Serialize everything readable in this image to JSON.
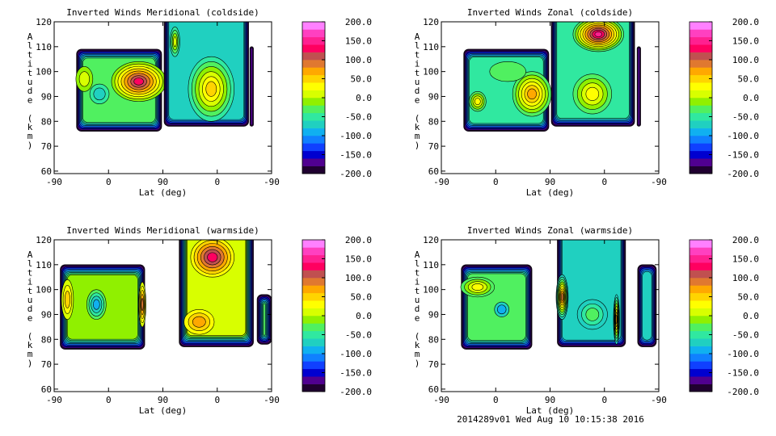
{
  "footer": "2014289v01 Wed Aug 10 10:15:38 2016",
  "chart_data": [
    {
      "type": "heatmap",
      "title": "Inverted Winds Meridional (coldside)",
      "xlabel": "Lat (deg)",
      "ylabel": "Altitude (km)",
      "xticks": [
        "-90",
        "0",
        "90",
        "0",
        "-90"
      ],
      "yticks": [
        60,
        70,
        80,
        90,
        100,
        110,
        120
      ],
      "ylim": [
        59,
        120
      ],
      "colorbar": {
        "range": [
          -200,
          200
        ],
        "step": 20,
        "labels": [
          "200.0",
          "150.0",
          "100.0",
          "50.0",
          "0.0",
          "-50.0",
          "-100.0",
          "-150.0",
          "-200.0"
        ]
      },
      "fields": [
        {
          "x": [
            37,
            178
          ],
          "alt": [
            76,
            109
          ],
          "base": -40,
          "blobs": [
            {
              "x": 140,
              "alt": 96,
              "w": 45,
              "h": 8,
              "v": 120
            },
            {
              "x": 75,
              "alt": 91,
              "w": 16,
              "h": 4,
              "v": -80
            },
            {
              "x": 50,
              "alt": 97,
              "w": 14,
              "h": 5,
              "v": 0
            }
          ]
        },
        {
          "x": 182,
          "x2": 322,
          "alt": [
            78,
            120
          ],
          "base": -80,
          "blobs": [
            {
              "x": 260,
              "alt": 93,
              "w": 38,
              "h": 13,
              "v": 40
            },
            {
              "x": 200,
              "alt": 112,
              "w": 8,
              "h": 6,
              "v": 0
            }
          ]
        },
        {
          "x": [
            324,
            330
          ],
          "alt": [
            78,
            110
          ],
          "base": -180,
          "blobs": []
        }
      ]
    },
    {
      "type": "heatmap",
      "title": "Inverted Winds Zonal (coldside)",
      "xlabel": "Lat (deg)",
      "ylabel": "Altitude (km)",
      "xticks": [
        "-90",
        "0",
        "90",
        "0",
        "-90"
      ],
      "yticks": [
        60,
        70,
        80,
        90,
        100,
        110,
        120
      ],
      "ylim": [
        59,
        120
      ],
      "colorbar": {
        "range": [
          -200,
          200
        ],
        "step": 20,
        "labels": [
          "200.0",
          "150.0",
          "100.0",
          "50.0",
          "0.0",
          "-50.0",
          "-100.0",
          "-150.0",
          "-200.0"
        ]
      },
      "fields": [
        {
          "x": [
            37,
            178
          ],
          "alt": [
            76,
            109
          ],
          "base": -60,
          "blobs": [
            {
              "x": 150,
              "alt": 91,
              "w": 32,
              "h": 9,
              "v": 60
            },
            {
              "x": 60,
              "alt": 88,
              "w": 14,
              "h": 4,
              "v": 20
            },
            {
              "x": 110,
              "alt": 100,
              "w": 30,
              "h": 4,
              "v": -40
            }
          ]
        },
        {
          "x": [
            182,
            320
          ],
          "alt": [
            78,
            120
          ],
          "base": -60,
          "blobs": [
            {
              "x": 260,
              "alt": 115,
              "w": 42,
              "h": 7,
              "v": 140
            },
            {
              "x": 250,
              "alt": 91,
              "w": 32,
              "h": 8,
              "v": 20
            }
          ]
        },
        {
          "x": [
            324,
            330
          ],
          "alt": [
            78,
            110
          ],
          "base": -180,
          "blobs": []
        }
      ]
    },
    {
      "type": "heatmap",
      "title": "Inverted Winds Meridional (warmside)",
      "xlabel": "Lat (deg)",
      "ylabel": "Altitude (km)",
      "xticks": [
        "-90",
        "0",
        "90",
        "0",
        "-90"
      ],
      "yticks": [
        60,
        70,
        80,
        90,
        100,
        110,
        120
      ],
      "ylim": [
        59,
        120
      ],
      "colorbar": {
        "range": [
          -200,
          200
        ],
        "step": 20,
        "labels": [
          "200.0",
          "150.0",
          "100.0",
          "50.0",
          "0.0",
          "-50.0",
          "-100.0",
          "-150.0",
          "-200.0"
        ]
      },
      "fields": [
        {
          "x": [
            10,
            150
          ],
          "alt": [
            76,
            110
          ],
          "base": -20,
          "blobs": [
            {
              "x": 22,
              "alt": 96,
              "w": 10,
              "h": 8,
              "v": 40
            },
            {
              "x": 70,
              "alt": 94,
              "w": 16,
              "h": 6,
              "v": -90
            },
            {
              "x": 146,
              "alt": 94,
              "w": 6,
              "h": 9,
              "v": 80
            }
          ]
        },
        {
          "x": [
            207,
            330
          ],
          "alt": [
            77,
            120
          ],
          "base": 0,
          "blobs": [
            {
              "x": 262,
              "alt": 113,
              "w": 36,
              "h": 8,
              "v": 120
            },
            {
              "x": 240,
              "alt": 87,
              "w": 25,
              "h": 5,
              "v": 60
            }
          ]
        },
        {
          "x": [
            336,
            360
          ],
          "alt": [
            78,
            98
          ],
          "base": -40,
          "blobs": []
        }
      ]
    },
    {
      "type": "heatmap",
      "title": "Inverted Winds Zonal (warmside)",
      "xlabel": "Lat (deg)",
      "ylabel": "Altitude (km)",
      "xticks": [
        "-90",
        "0",
        "90",
        "0",
        "-90"
      ],
      "yticks": [
        60,
        70,
        80,
        90,
        100,
        110,
        120
      ],
      "ylim": [
        59,
        120
      ],
      "colorbar": {
        "range": [
          -200,
          200
        ],
        "step": 20,
        "labels": [
          "200.0",
          "150.0",
          "100.0",
          "50.0",
          "0.0",
          "-50.0",
          "-100.0",
          "-150.0",
          "-200.0"
        ]
      },
      "fields": [
        {
          "x": [
            33,
            150
          ],
          "alt": [
            76,
            110
          ],
          "base": -50,
          "blobs": [
            {
              "x": 60,
              "alt": 101,
              "w": 28,
              "h": 4,
              "v": 30
            },
            {
              "x": 100,
              "alt": 92,
              "w": 12,
              "h": 3,
              "v": -90
            }
          ]
        },
        {
          "x": [
            192,
            305
          ],
          "alt": [
            77,
            120
          ],
          "base": -90,
          "blobs": [
            {
              "x": 200,
              "alt": 97,
              "w": 10,
              "h": 9,
              "v": 80
            },
            {
              "x": 290,
              "alt": 88,
              "w": 5,
              "h": 10,
              "v": 60
            },
            {
              "x": 250,
              "alt": 90,
              "w": 25,
              "h": 6,
              "v": -30
            }
          ]
        },
        {
          "x": [
            325,
            356
          ],
          "alt": [
            77,
            110
          ],
          "base": -90,
          "blobs": []
        }
      ]
    }
  ]
}
